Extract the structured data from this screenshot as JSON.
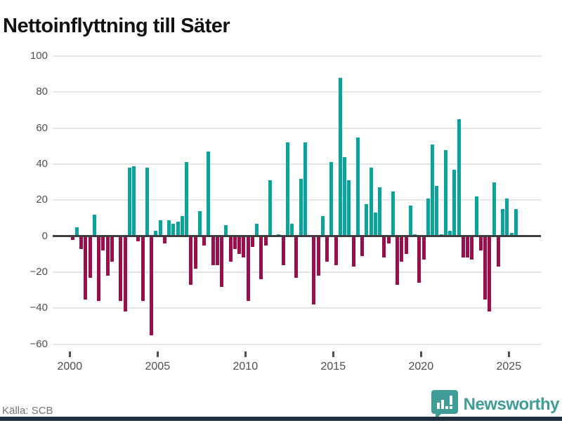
{
  "title": "Nettoinflyttning till Säter",
  "source": "Källa: SCB",
  "branding": {
    "name": "Newsworthy",
    "badge_icon": "bar-chart-speech-bubble",
    "color": "#3f9c96"
  },
  "colors": {
    "positive_bar": "#0aa49e",
    "negative_bar": "#9b0d4b",
    "zero_line": "#3d3d3d",
    "gridline": "#e4e4e4",
    "axis_text": "#4f4f4f",
    "footer_bar": "#1f2d3d"
  },
  "chart_data": {
    "type": "bar",
    "title": "Nettoinflyttning till Säter",
    "xlabel": "",
    "ylabel": "",
    "ylim": [
      -60,
      100
    ],
    "grid": true,
    "y_ticks": [
      100,
      80,
      60,
      40,
      20,
      0,
      -20,
      -40,
      -60
    ],
    "y_tick_labels": [
      "100",
      "80",
      "60",
      "40",
      "20",
      "0",
      "−20",
      "−40",
      "−60"
    ],
    "x_tick_labels": [
      "2000",
      "2005",
      "2010",
      "2015",
      "2020",
      "2025"
    ],
    "categories": [
      "2000 Q1",
      "2000 Q2",
      "2000 Q3",
      "2000 Q4",
      "2001 Q1",
      "2001 Q2",
      "2001 Q3",
      "2001 Q4",
      "2002 Q1",
      "2002 Q2",
      "2002 Q3",
      "2002 Q4",
      "2003 Q1",
      "2003 Q2",
      "2003 Q3",
      "2003 Q4",
      "2004 Q1",
      "2004 Q2",
      "2004 Q3",
      "2004 Q4",
      "2005 Q1",
      "2005 Q2",
      "2005 Q3",
      "2005 Q4",
      "2006 Q1",
      "2006 Q2",
      "2006 Q3",
      "2006 Q4",
      "2007 Q1",
      "2007 Q2",
      "2007 Q3",
      "2007 Q4",
      "2008 Q1",
      "2008 Q2",
      "2008 Q3",
      "2008 Q4",
      "2009 Q1",
      "2009 Q2",
      "2009 Q3",
      "2009 Q4",
      "2010 Q1",
      "2010 Q2",
      "2010 Q3",
      "2010 Q4",
      "2011 Q1",
      "2011 Q2",
      "2011 Q3",
      "2011 Q4",
      "2012 Q1",
      "2012 Q2",
      "2012 Q3",
      "2012 Q4",
      "2013 Q1",
      "2013 Q2",
      "2013 Q3",
      "2013 Q4",
      "2014 Q1",
      "2014 Q2",
      "2014 Q3",
      "2014 Q4",
      "2015 Q1",
      "2015 Q2",
      "2015 Q3",
      "2015 Q4",
      "2016 Q1",
      "2016 Q2",
      "2016 Q3",
      "2016 Q4",
      "2017 Q1",
      "2017 Q2",
      "2017 Q3",
      "2017 Q4",
      "2018 Q1",
      "2018 Q2",
      "2018 Q3",
      "2018 Q4",
      "2019 Q1",
      "2019 Q2",
      "2019 Q3",
      "2019 Q4",
      "2020 Q1",
      "2020 Q2",
      "2020 Q3",
      "2020 Q4",
      "2021 Q1",
      "2021 Q2",
      "2021 Q3",
      "2021 Q4",
      "2022 Q1",
      "2022 Q2",
      "2022 Q3",
      "2022 Q4",
      "2023 Q1",
      "2023 Q2",
      "2023 Q3",
      "2023 Q4",
      "2024 Q1",
      "2024 Q2",
      "2024 Q3",
      "2024 Q4",
      "2025 Q1",
      "2025 Q2"
    ],
    "values": [
      -2,
      5,
      -7,
      -35,
      -23,
      12,
      -36,
      -8,
      -22,
      -14,
      0,
      -36,
      -42,
      38,
      39,
      -3,
      -36,
      38,
      -55,
      3,
      9,
      -4,
      9,
      7,
      8,
      11,
      41,
      -27,
      -18,
      14,
      -5,
      47,
      -16,
      -16,
      -28,
      6,
      -14,
      -7,
      -10,
      -12,
      -36,
      -6,
      7,
      -24,
      -5,
      31,
      0,
      1,
      -16,
      52,
      7,
      -23,
      32,
      52,
      0,
      -38,
      -22,
      11,
      -14,
      41,
      -16,
      88,
      44,
      31,
      -17,
      55,
      -11,
      18,
      38,
      13,
      27,
      -12,
      -4,
      25,
      -27,
      -14,
      -10,
      17,
      1,
      -26,
      -13,
      21,
      51,
      28,
      1,
      48,
      3,
      37,
      65,
      -12,
      -12,
      -13,
      22,
      -8,
      -35,
      -42,
      30,
      -17,
      15,
      21,
      2,
      15
    ],
    "legend": false,
    "positive_color": "#0aa49e",
    "negative_color": "#9b0d4b"
  }
}
